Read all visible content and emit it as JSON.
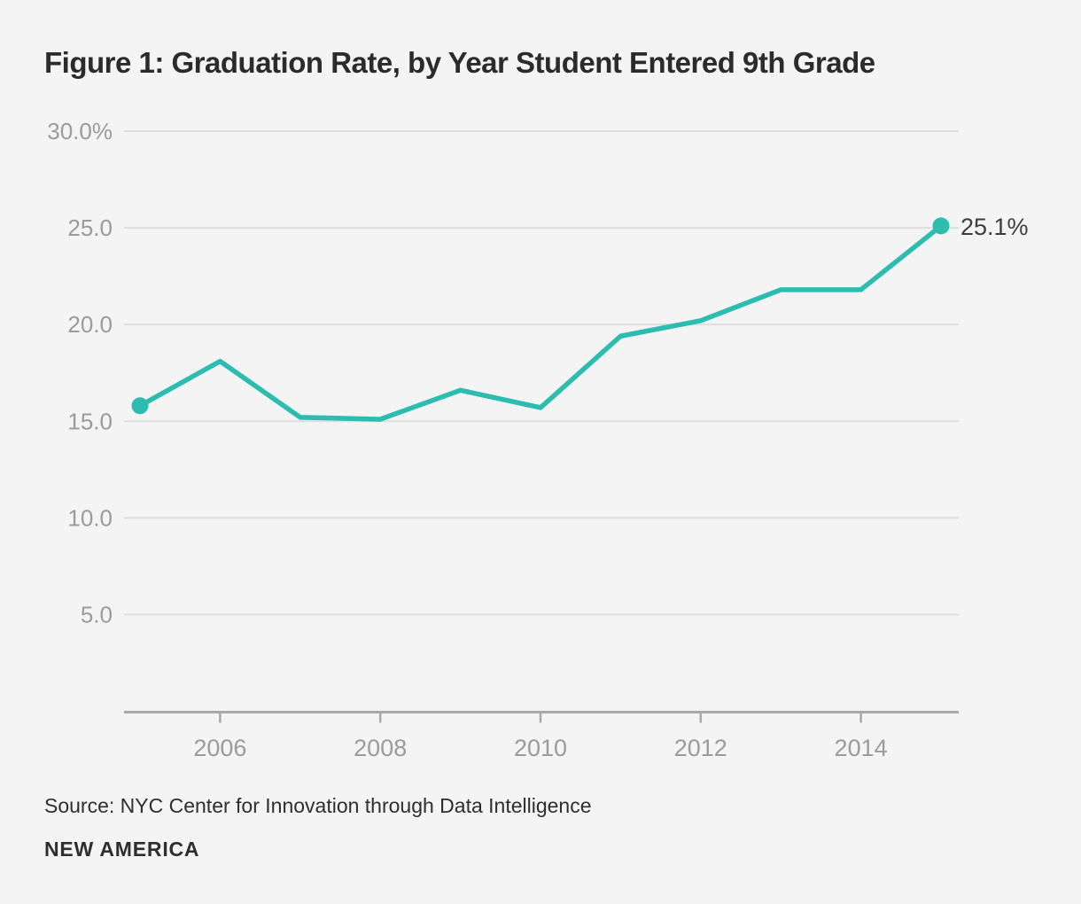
{
  "title": "Figure 1: Graduation Rate, by Year Student Entered 9th Grade",
  "source": "Source: NYC Center for Innovation through Data Intelligence",
  "brand": "NEW AMERICA",
  "colors": {
    "background": "#f4f4f4",
    "line": "#2cbcb0",
    "gridline": "#dedede",
    "axis": "#a9a9a9",
    "tick_label": "#9b9b9b",
    "title_text": "#2b2b2b",
    "annotation_text": "#3d3d3d"
  },
  "chart_data": {
    "type": "line",
    "title": "Figure 1: Graduation Rate, by Year Student Entered 9th Grade",
    "series_name": "Graduation rate",
    "x": [
      2005,
      2006,
      2007,
      2008,
      2009,
      2010,
      2011,
      2012,
      2013,
      2014,
      2015
    ],
    "values": [
      15.8,
      18.1,
      15.2,
      15.1,
      16.6,
      15.7,
      19.4,
      20.2,
      21.8,
      21.8,
      25.1
    ],
    "xlabel": "",
    "ylabel": "",
    "ylim": [
      0,
      30
    ],
    "ytick_values": [
      5,
      10,
      15,
      20,
      25,
      30
    ],
    "ytick_labels": [
      "5.0",
      "10.0",
      "15.0",
      "20.0",
      "25.0",
      "30.0%"
    ],
    "xtick_values": [
      2006,
      2008,
      2010,
      2012,
      2014
    ],
    "xtick_labels": [
      "2006",
      "2008",
      "2010",
      "2012",
      "2014"
    ],
    "grid": "horizontal",
    "legend": "none",
    "markers": "first_and_last_points_only",
    "end_label": "25.1%"
  }
}
